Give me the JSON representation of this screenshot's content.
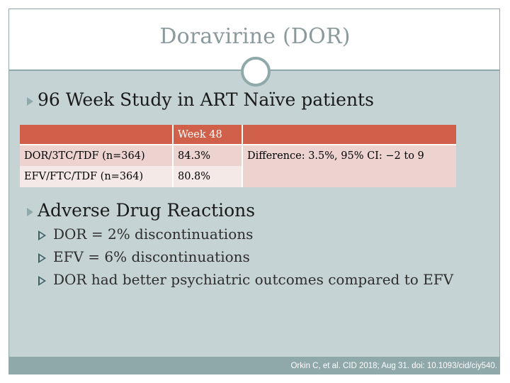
{
  "slide": {
    "title": "Doravirine (DOR)",
    "bullet1": "96 Week Study in ART Naïve patients",
    "table": {
      "header": [
        "",
        "Week 48",
        ""
      ],
      "rows": [
        [
          "DOR/3TC/TDF (n=364)",
          "84.3%",
          "Difference: 3.5%, 95% CI: −2 to 9"
        ],
        [
          "EFV/FTC/TDF (n=364)",
          "80.8%",
          ""
        ]
      ]
    },
    "bullet2": "Adverse Drug Reactions",
    "sub_bullets": [
      "DOR = 2% discontinuations",
      "EFV = 6% discontinuations",
      "DOR had better psychiatric outcomes compared to EFV"
    ],
    "citation": "Orkin C, et al. CID 2018; Aug 31. doi: 10.1093/cid/ciy540."
  },
  "colors": {
    "accent": "#8fa8aa",
    "table_header": "#d0604a",
    "table_row1": "#ecd3d0",
    "table_row2": "#f5e9e8",
    "background": "#c5d3d4"
  }
}
